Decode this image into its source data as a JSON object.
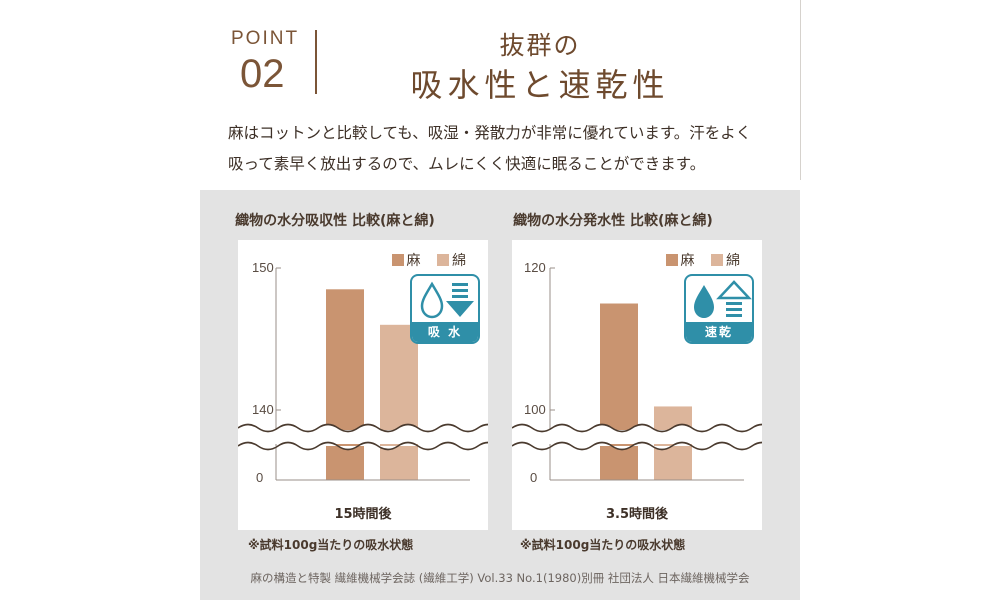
{
  "header": {
    "point_label": "POINT",
    "point_number": "02",
    "title_line1": "抜群の",
    "title_line2": "吸水性と速乾性"
  },
  "intro": {
    "line1": "麻はコットンと比較しても、吸湿・発散力が非常に優れています。汗をよく",
    "line2": "吸って素早く放出するので、ムレにくく快適に眠ることができます。"
  },
  "colors": {
    "accent": "#7b5537",
    "linen": "#c99470",
    "cotton": "#dcb59b",
    "badge": "#2f8fa8",
    "panel": "#e3e3e3"
  },
  "legend": {
    "linen": "麻",
    "cotton": "綿"
  },
  "chart_data": [
    {
      "type": "bar",
      "title": "織物の水分吸収性 比較(麻と綿)",
      "xlabel": "15時間後",
      "ylabel": "",
      "categories": [
        "15時間後"
      ],
      "series": [
        {
          "name": "麻",
          "values": [
            148.5
          ]
        },
        {
          "name": "綿",
          "values": [
            146
          ]
        }
      ],
      "yticks": [
        "0",
        "140",
        "150"
      ],
      "ylim": [
        140,
        150
      ],
      "axis_break": true,
      "badge_icon": "water-drop-down-arrow-icon",
      "badge_label": "吸 水",
      "note": "※試料100g当たりの吸水状態"
    },
    {
      "type": "bar",
      "title": "織物の水分発水性 比較(麻と綿)",
      "xlabel": "3.5時間後",
      "ylabel": "",
      "categories": [
        "3.5時間後"
      ],
      "series": [
        {
          "name": "麻",
          "values": [
            115
          ]
        },
        {
          "name": "綿",
          "values": [
            100.5
          ]
        }
      ],
      "yticks": [
        "0",
        "100",
        "120"
      ],
      "ylim": [
        100,
        120
      ],
      "axis_break": true,
      "badge_icon": "water-drop-up-arrow-icon",
      "badge_label": "速乾",
      "note": "※試料100g当たりの吸水状態"
    }
  ],
  "source": "麻の構造と特製 繊維機械学会誌 (繊維工学) Vol.33 No.1(1980)別冊 社団法人 日本繊維機械学会"
}
